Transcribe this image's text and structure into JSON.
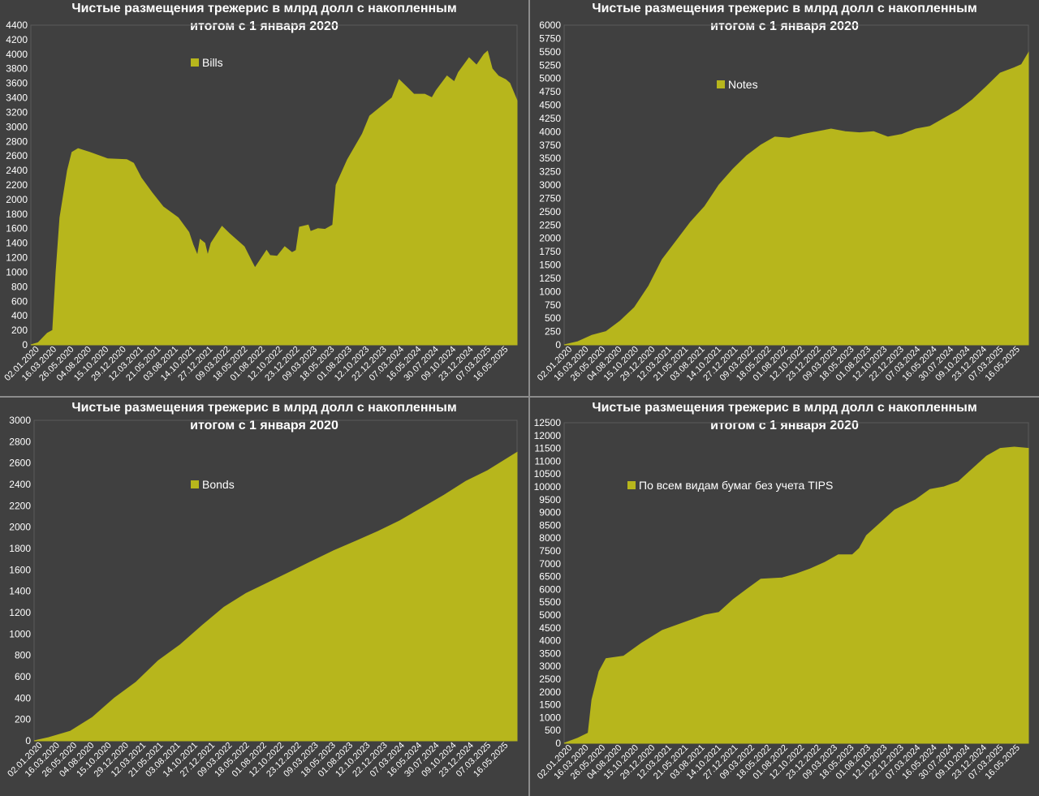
{
  "colors": {
    "area": "#b7b61c",
    "background": "#404040",
    "text": "#ffffff",
    "border": "#8c8c8c"
  },
  "x_ticks": [
    "02.01.2020",
    "16.03.2020",
    "26.05.2020",
    "04.08.2020",
    "15.10.2020",
    "29.12.2020",
    "12.03.2021",
    "21.05.2021",
    "03.08.2021",
    "14.10.2021",
    "27.12.2021",
    "09.03.2022",
    "18.05.2022",
    "01.08.2022",
    "12.10.2022",
    "23.12.2022",
    "09.03.2023",
    "18.05.2023",
    "01.08.2023",
    "12.10.2023",
    "22.12.2023",
    "07.03.2024",
    "16.05.2024",
    "30.07.2024",
    "09.10.2024",
    "23.12.2024",
    "07.03.2025",
    "16.05.2025"
  ],
  "chart_data": [
    {
      "type": "area",
      "title": "Чистые размещения трежерис в млрд долл с накопленным итогом с 1 января 2020",
      "title_lines": [
        "Чистые размещения трежерис в млрд долл с накопленным",
        "итогом с 1 января 2020"
      ],
      "legend": "Bills",
      "legend_position": "top-left",
      "ylim": [
        0,
        4400
      ],
      "y_step": 200,
      "y_ticks": [
        "0",
        "200",
        "400",
        "600",
        "800",
        "1000",
        "1200",
        "1400",
        "1600",
        "1800",
        "2000",
        "2200",
        "2400",
        "2600",
        "2800",
        "3000",
        "3200",
        "3400",
        "3600",
        "3800",
        "4000",
        "4200",
        "4400"
      ],
      "points": [
        [
          "02.01.2020",
          0
        ],
        [
          "01.02.2020",
          30
        ],
        [
          "10.03.2020",
          160
        ],
        [
          "01.04.2020",
          200
        ],
        [
          "15.04.2020",
          1000
        ],
        [
          "01.05.2020",
          1750
        ],
        [
          "01.06.2020",
          2400
        ],
        [
          "20.06.2020",
          2650
        ],
        [
          "15.07.2020",
          2700
        ],
        [
          "01.09.2020",
          2650
        ],
        [
          "15.11.2020",
          2560
        ],
        [
          "01.02.2021",
          2550
        ],
        [
          "01.03.2021",
          2500
        ],
        [
          "01.04.2021",
          2300
        ],
        [
          "15.05.2021",
          2100
        ],
        [
          "01.07.2021",
          1900
        ],
        [
          "01.09.2021",
          1750
        ],
        [
          "15.10.2021",
          1550
        ],
        [
          "01.11.2021",
          1380
        ],
        [
          "20.11.2021",
          1230
        ],
        [
          "01.12.2021",
          1450
        ],
        [
          "20.12.2021",
          1400
        ],
        [
          "01.01.2022",
          1230
        ],
        [
          "15.01.2022",
          1400
        ],
        [
          "01.03.2022",
          1630
        ],
        [
          "01.04.2022",
          1530
        ],
        [
          "01.06.2022",
          1350
        ],
        [
          "01.07.2022",
          1150
        ],
        [
          "15.07.2022",
          1060
        ],
        [
          "01.09.2022",
          1300
        ],
        [
          "15.09.2022",
          1230
        ],
        [
          "15.10.2022",
          1220
        ],
        [
          "15.11.2022",
          1350
        ],
        [
          "15.12.2022",
          1270
        ],
        [
          "01.01.2023",
          1300
        ],
        [
          "15.01.2023",
          1620
        ],
        [
          "20.02.2023",
          1650
        ],
        [
          "01.03.2023",
          1560
        ],
        [
          "01.04.2023",
          1600
        ],
        [
          "01.05.2023",
          1590
        ],
        [
          "01.06.2023",
          1650
        ],
        [
          "15.06.2023",
          2200
        ],
        [
          "01.08.2023",
          2550
        ],
        [
          "01.10.2023",
          2900
        ],
        [
          "01.11.2023",
          3150
        ],
        [
          "15.12.2023",
          3270
        ],
        [
          "01.02.2024",
          3400
        ],
        [
          "01.03.2024",
          3650
        ],
        [
          "01.04.2024",
          3550
        ],
        [
          "01.05.2024",
          3450
        ],
        [
          "15.06.2024",
          3450
        ],
        [
          "15.07.2024",
          3400
        ],
        [
          "01.08.2024",
          3500
        ],
        [
          "15.09.2024",
          3700
        ],
        [
          "15.10.2024",
          3620
        ],
        [
          "01.11.2024",
          3750
        ],
        [
          "15.12.2024",
          3950
        ],
        [
          "15.01.2025",
          3850
        ],
        [
          "15.02.2025",
          4000
        ],
        [
          "01.03.2025",
          4040
        ],
        [
          "20.03.2025",
          3800
        ],
        [
          "15.04.2025",
          3700
        ],
        [
          "15.05.2025",
          3650
        ],
        [
          "01.06.2025",
          3600
        ],
        [
          "01.07.2025",
          3360
        ]
      ]
    },
    {
      "type": "area",
      "title": "Чистые размещения трежерис в млрд долл с накопленным итогом с 1 января 2020",
      "title_lines": [
        "Чистые размещения трежерис в млрд долл с накопленным",
        "итогом с 1 января 2020"
      ],
      "legend": "Notes",
      "legend_position": "top-left",
      "ylim": [
        0,
        6000
      ],
      "y_step": 250,
      "y_ticks": [
        "0",
        "250",
        "500",
        "750",
        "1000",
        "1250",
        "1500",
        "1750",
        "2000",
        "2250",
        "2500",
        "2750",
        "3000",
        "3250",
        "3500",
        "3750",
        "4000",
        "4250",
        "4500",
        "4750",
        "5000",
        "5250",
        "5500",
        "5750",
        "6000"
      ],
      "points": [
        [
          "02.01.2020",
          0
        ],
        [
          "01.03.2020",
          60
        ],
        [
          "01.05.2020",
          180
        ],
        [
          "01.07.2020",
          250
        ],
        [
          "01.09.2020",
          450
        ],
        [
          "01.11.2020",
          700
        ],
        [
          "01.01.2021",
          1100
        ],
        [
          "01.03.2021",
          1600
        ],
        [
          "01.05.2021",
          1950
        ],
        [
          "01.07.2021",
          2300
        ],
        [
          "01.09.2021",
          2600
        ],
        [
          "01.11.2021",
          3000
        ],
        [
          "01.01.2022",
          3300
        ],
        [
          "01.03.2022",
          3550
        ],
        [
          "01.05.2022",
          3750
        ],
        [
          "01.07.2022",
          3900
        ],
        [
          "01.09.2022",
          3880
        ],
        [
          "01.11.2022",
          3950
        ],
        [
          "01.01.2023",
          4000
        ],
        [
          "01.03.2023",
          4050
        ],
        [
          "01.05.2023",
          4000
        ],
        [
          "01.07.2023",
          3980
        ],
        [
          "01.09.2023",
          4000
        ],
        [
          "01.11.2023",
          3900
        ],
        [
          "01.01.2024",
          3950
        ],
        [
          "01.03.2024",
          4050
        ],
        [
          "01.05.2024",
          4100
        ],
        [
          "01.07.2024",
          4250
        ],
        [
          "01.09.2024",
          4400
        ],
        [
          "01.11.2024",
          4600
        ],
        [
          "01.01.2025",
          4850
        ],
        [
          "01.03.2025",
          5100
        ],
        [
          "01.05.2025",
          5200
        ],
        [
          "01.06.2025",
          5260
        ],
        [
          "01.07.2025",
          5480
        ]
      ]
    },
    {
      "type": "area",
      "title": "Чистые размещения трежерис в млрд долл с накопленным итогом с 1 января 2020",
      "title_lines": [
        "Чистые размещения трежерис в млрд долл с накопленным",
        "итогом с 1 января 2020"
      ],
      "legend": "Bonds",
      "legend_position": "top-left",
      "ylim": [
        0,
        3000
      ],
      "y_step": 200,
      "y_ticks": [
        "0",
        "200",
        "400",
        "600",
        "800",
        "1000",
        "1200",
        "1400",
        "1600",
        "1800",
        "2000",
        "2200",
        "2400",
        "2600",
        "2800",
        "3000"
      ],
      "points": [
        [
          "02.01.2020",
          0
        ],
        [
          "01.03.2020",
          30
        ],
        [
          "01.06.2020",
          90
        ],
        [
          "01.09.2020",
          220
        ],
        [
          "01.12.2020",
          400
        ],
        [
          "01.03.2021",
          550
        ],
        [
          "01.06.2021",
          750
        ],
        [
          "01.09.2021",
          900
        ],
        [
          "01.12.2021",
          1080
        ],
        [
          "01.03.2022",
          1250
        ],
        [
          "01.06.2022",
          1380
        ],
        [
          "01.09.2022",
          1480
        ],
        [
          "01.12.2022",
          1580
        ],
        [
          "01.03.2023",
          1680
        ],
        [
          "01.06.2023",
          1780
        ],
        [
          "01.09.2023",
          1870
        ],
        [
          "01.12.2023",
          1960
        ],
        [
          "01.03.2024",
          2060
        ],
        [
          "01.06.2024",
          2180
        ],
        [
          "01.09.2024",
          2300
        ],
        [
          "01.12.2024",
          2430
        ],
        [
          "01.03.2025",
          2530
        ],
        [
          "01.07.2025",
          2700
        ]
      ]
    },
    {
      "type": "area",
      "title": "Чистые размещения трежерис в млрд долл с накопленным итогом с 1 января 2020",
      "title_lines": [
        "Чистые размещения трежерис в млрд долл с накопленным",
        "итогом с 1 января 2020"
      ],
      "legend": "По всем видам бумаг без учета TIPS",
      "legend_position": "top-left",
      "ylim": [
        0,
        12500
      ],
      "y_step": 500,
      "y_ticks": [
        "0",
        "500",
        "1000",
        "1500",
        "2000",
        "2500",
        "3000",
        "3500",
        "4000",
        "4500",
        "5000",
        "5500",
        "6000",
        "6500",
        "7000",
        "7500",
        "8000",
        "8500",
        "9000",
        "9500",
        "10000",
        "10500",
        "11000",
        "11500",
        "12000",
        "12500"
      ],
      "points": [
        [
          "02.01.2020",
          0
        ],
        [
          "01.03.2020",
          200
        ],
        [
          "15.04.2020",
          400
        ],
        [
          "01.05.2020",
          1700
        ],
        [
          "01.06.2020",
          2800
        ],
        [
          "01.07.2020",
          3300
        ],
        [
          "15.09.2020",
          3400
        ],
        [
          "01.12.2020",
          3900
        ],
        [
          "01.03.2021",
          4400
        ],
        [
          "01.06.2021",
          4700
        ],
        [
          "01.09.2021",
          5000
        ],
        [
          "01.11.2021",
          5100
        ],
        [
          "01.01.2022",
          5600
        ],
        [
          "01.03.2022",
          6000
        ],
        [
          "01.05.2022",
          6400
        ],
        [
          "01.08.2022",
          6450
        ],
        [
          "01.10.2022",
          6600
        ],
        [
          "01.12.2022",
          6800
        ],
        [
          "01.02.2023",
          7050
        ],
        [
          "01.04.2023",
          7350
        ],
        [
          "01.06.2023",
          7350
        ],
        [
          "01.07.2023",
          7600
        ],
        [
          "01.08.2023",
          8100
        ],
        [
          "01.10.2023",
          8600
        ],
        [
          "01.12.2023",
          9100
        ],
        [
          "01.03.2024",
          9500
        ],
        [
          "01.05.2024",
          9900
        ],
        [
          "01.07.2024",
          10000
        ],
        [
          "01.09.2024",
          10200
        ],
        [
          "01.11.2024",
          10700
        ],
        [
          "01.01.2025",
          11200
        ],
        [
          "01.03.2025",
          11500
        ],
        [
          "01.05.2025",
          11550
        ],
        [
          "01.07.2025",
          11500
        ]
      ]
    }
  ]
}
